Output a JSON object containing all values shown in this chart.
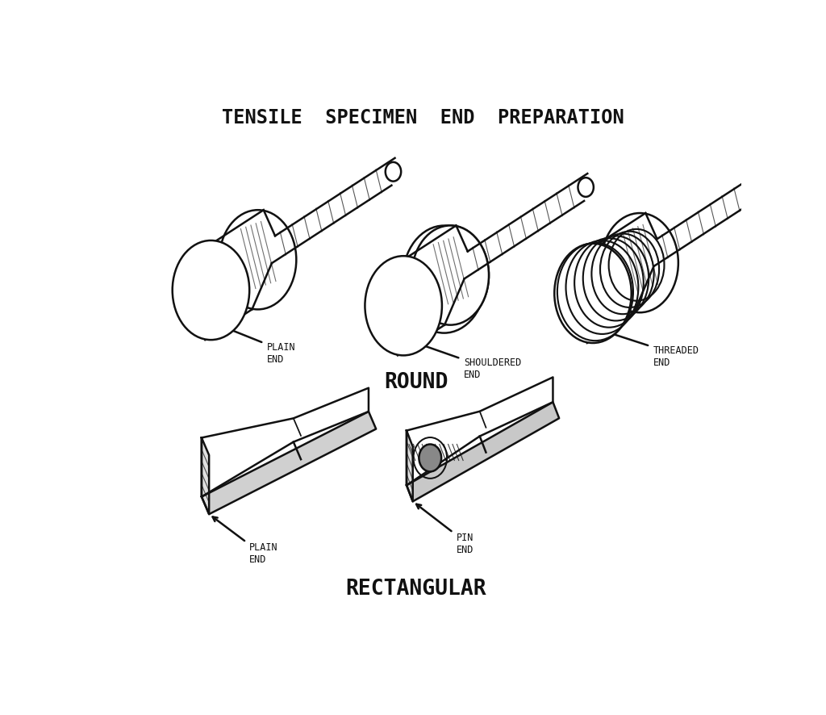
{
  "title": "TENSILE  SPECIMEN  END  PREPARATION",
  "round_label": "ROUND",
  "rect_label": "RECTANGULAR",
  "labels": {
    "plain_round": "PLAIN\nEND",
    "shouldered": "SHOULDERED\nEND",
    "threaded": "THREADED\nEND",
    "plain_rect": "PLAIN\nEND",
    "pin": "PIN\nEND"
  },
  "bg_color": "#ffffff",
  "line_color": "#111111",
  "title_fontsize": 17,
  "label_fontsize": 8.5,
  "section_fontsize": 19,
  "font_family": "monospace"
}
